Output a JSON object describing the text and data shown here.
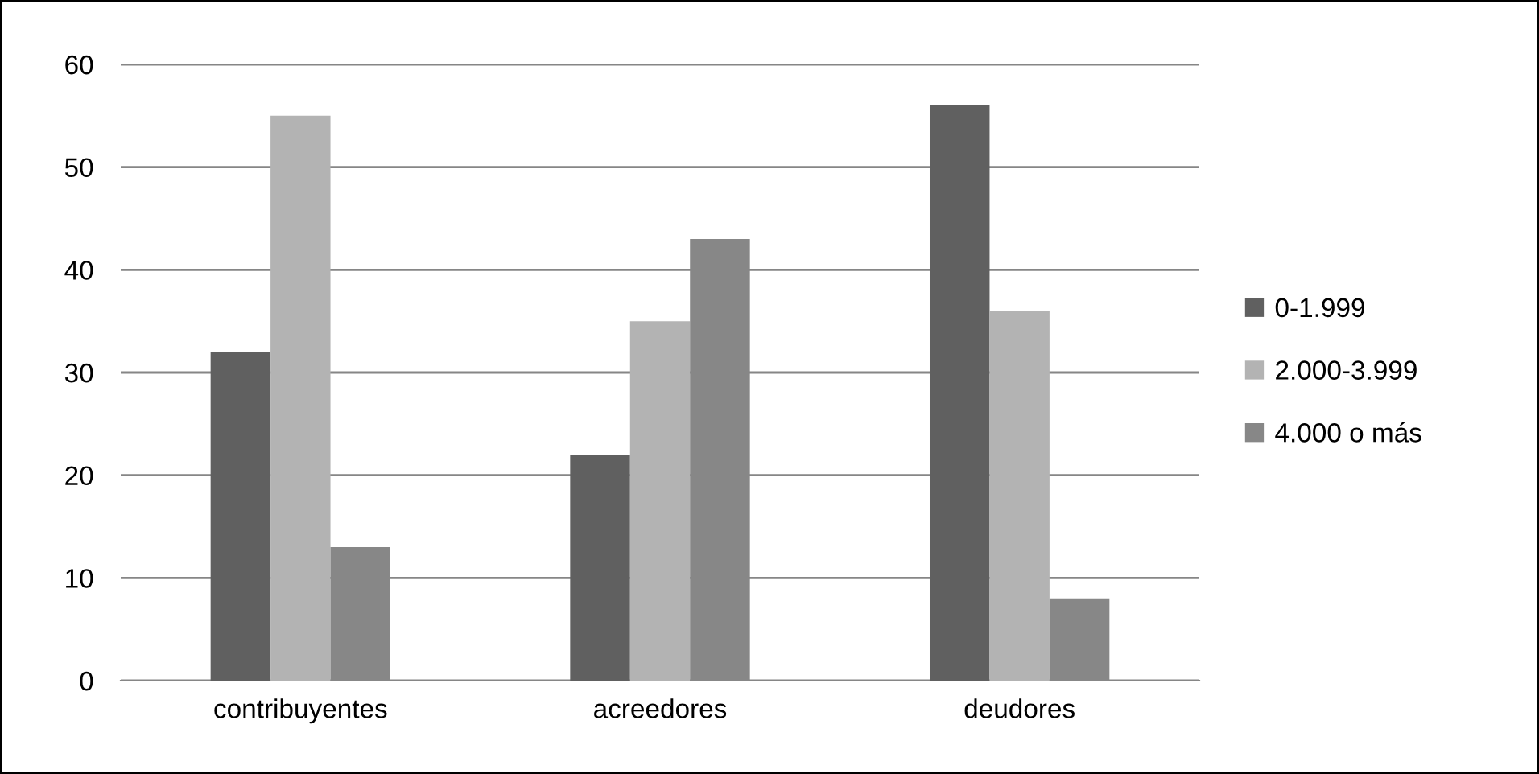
{
  "chart_data": {
    "type": "bar",
    "categories": [
      "contribuyentes",
      "acreedores",
      "deudores"
    ],
    "series": [
      {
        "name": "0-1.999",
        "color": "#606060",
        "values": [
          32,
          22,
          56
        ]
      },
      {
        "name": "2.000-3.999",
        "color": "#b3b3b3",
        "values": [
          55,
          35,
          36
        ]
      },
      {
        "name": "4.000 o más",
        "color": "#878787",
        "values": [
          13,
          43,
          8
        ]
      }
    ],
    "ylim": [
      0,
      60
    ],
    "yticks": [
      0,
      10,
      20,
      30,
      40,
      50,
      60
    ],
    "grid": "y",
    "legend": "right"
  }
}
